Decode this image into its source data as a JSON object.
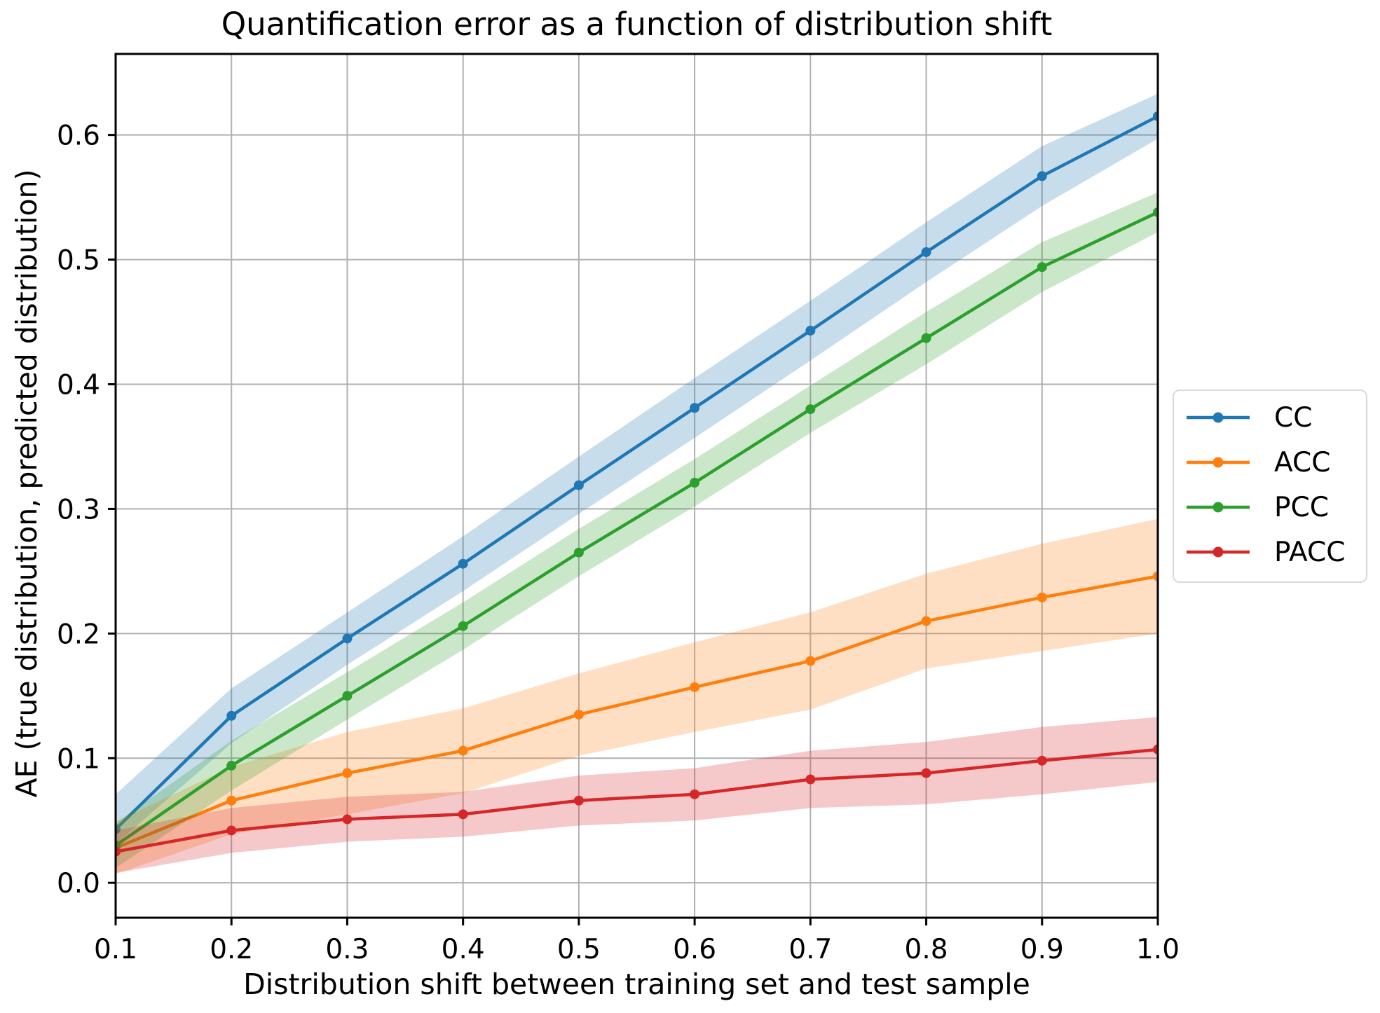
{
  "chart_data": {
    "type": "line",
    "title": "Quantification error as a function of distribution shift",
    "xlabel": "Distribution shift between training set and test sample",
    "ylabel": "AE (true distribution, predicted distribution)",
    "x": [
      0.1,
      0.2,
      0.3,
      0.4,
      0.5,
      0.6,
      0.7,
      0.8,
      0.9,
      1.0
    ],
    "xtick_labels": [
      "0.1",
      "0.2",
      "0.3",
      "0.4",
      "0.5",
      "0.6",
      "0.7",
      "0.8",
      "0.9",
      "1.0"
    ],
    "ytick_values": [
      0.0,
      0.1,
      0.2,
      0.3,
      0.4,
      0.5,
      0.6
    ],
    "ytick_labels": [
      "0.0",
      "0.1",
      "0.2",
      "0.3",
      "0.4",
      "0.5",
      "0.6"
    ],
    "xlim": [
      0.1,
      1.0
    ],
    "ylim": [
      -0.028,
      0.665
    ],
    "grid": true,
    "grid_color": "#b0b0b0",
    "axis_color": "#000000",
    "band_opacity": 0.25,
    "legend": {
      "position": "right-outside",
      "border_color": "#d9d9d9"
    },
    "series": [
      {
        "name": "CC",
        "color": "#1f77b4",
        "values": [
          0.043,
          0.134,
          0.196,
          0.256,
          0.319,
          0.381,
          0.443,
          0.506,
          0.567,
          0.615
        ],
        "band_lower": [
          0.031,
          0.112,
          0.175,
          0.234,
          0.296,
          0.357,
          0.419,
          0.482,
          0.543,
          0.597
        ],
        "band_upper": [
          0.071,
          0.156,
          0.217,
          0.278,
          0.342,
          0.405,
          0.467,
          0.53,
          0.591,
          0.633
        ]
      },
      {
        "name": "ACC",
        "color": "#ff7f0e",
        "values": [
          0.028,
          0.066,
          0.088,
          0.106,
          0.135,
          0.157,
          0.178,
          0.21,
          0.229,
          0.246
        ],
        "band_lower": [
          0.007,
          0.039,
          0.055,
          0.072,
          0.102,
          0.121,
          0.139,
          0.172,
          0.186,
          0.2
        ],
        "band_upper": [
          0.049,
          0.093,
          0.121,
          0.14,
          0.168,
          0.193,
          0.217,
          0.248,
          0.272,
          0.292
        ]
      },
      {
        "name": "PCC",
        "color": "#2ca02c",
        "values": [
          0.03,
          0.094,
          0.15,
          0.206,
          0.265,
          0.321,
          0.38,
          0.437,
          0.494,
          0.538
        ],
        "band_lower": [
          0.012,
          0.074,
          0.131,
          0.187,
          0.246,
          0.302,
          0.361,
          0.416,
          0.474,
          0.522
        ],
        "band_upper": [
          0.048,
          0.114,
          0.169,
          0.225,
          0.284,
          0.34,
          0.399,
          0.458,
          0.514,
          0.554
        ]
      },
      {
        "name": "PACC",
        "color": "#d62728",
        "values": [
          0.025,
          0.042,
          0.051,
          0.055,
          0.066,
          0.071,
          0.083,
          0.088,
          0.098,
          0.107
        ],
        "band_lower": [
          0.008,
          0.024,
          0.033,
          0.037,
          0.046,
          0.05,
          0.06,
          0.063,
          0.071,
          0.081
        ],
        "band_upper": [
          0.042,
          0.06,
          0.069,
          0.073,
          0.086,
          0.092,
          0.106,
          0.113,
          0.125,
          0.133
        ]
      }
    ]
  }
}
